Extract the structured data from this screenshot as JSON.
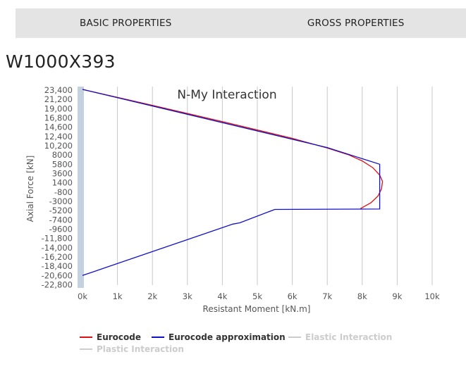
{
  "tabs": [
    {
      "label": "BASIC PROPERTIES"
    },
    {
      "label": "GROSS PROPERTIES"
    }
  ],
  "section_title": "W1000X393",
  "chart_data": {
    "type": "line",
    "title": "N-My Interaction",
    "xlabel": "Resistant Moment [kN.m]",
    "ylabel": "Axial Force [kN]",
    "xlim": [
      0,
      10000
    ],
    "ylim": [
      -23400,
      23400
    ],
    "x_ticks": [
      "0k",
      "1k",
      "2k",
      "3k",
      "4k",
      "5k",
      "6k",
      "7k",
      "8k",
      "9k",
      "10k"
    ],
    "y_ticks": [
      "23,400",
      "21,200",
      "19,000",
      "16,800",
      "14,600",
      "12,400",
      "10,200",
      "8000",
      "5800",
      "3600",
      "1400",
      "-800",
      "-3000",
      "-5200",
      "-7400",
      "-9600",
      "-11,800",
      "-14,000",
      "-16,200",
      "-18,400",
      "-20,600",
      "-22,800"
    ],
    "grid": "vertical",
    "legend_position": "bottom",
    "series": [
      {
        "name": "Eurocode",
        "color": "#e01010",
        "visible": true,
        "points": [
          [
            0,
            23400
          ],
          [
            2000,
            19600
          ],
          [
            4000,
            15700
          ],
          [
            6000,
            11700
          ],
          [
            7000,
            9400
          ],
          [
            7600,
            7800
          ],
          [
            8000,
            6300
          ],
          [
            8300,
            4700
          ],
          [
            8500,
            2900
          ],
          [
            8580,
            1400
          ],
          [
            8550,
            -400
          ],
          [
            8450,
            -2100
          ],
          [
            8250,
            -3700
          ],
          [
            7950,
            -5100
          ]
        ]
      },
      {
        "name": "Eurocode approximation",
        "color": "#1010c8",
        "visible": true,
        "points": [
          [
            0,
            23400
          ],
          [
            7000,
            9500
          ],
          [
            8500,
            5500
          ],
          [
            8500,
            -5200
          ],
          [
            5500,
            -5300
          ],
          [
            4500,
            -8500
          ],
          [
            4300,
            -8800
          ],
          [
            0,
            -21100
          ]
        ]
      },
      {
        "name": "Elastic Interaction",
        "color": "#cccccc",
        "visible": false,
        "points": []
      },
      {
        "name": "Plastic Interaction",
        "color": "#cccccc",
        "visible": false,
        "points": []
      }
    ]
  }
}
